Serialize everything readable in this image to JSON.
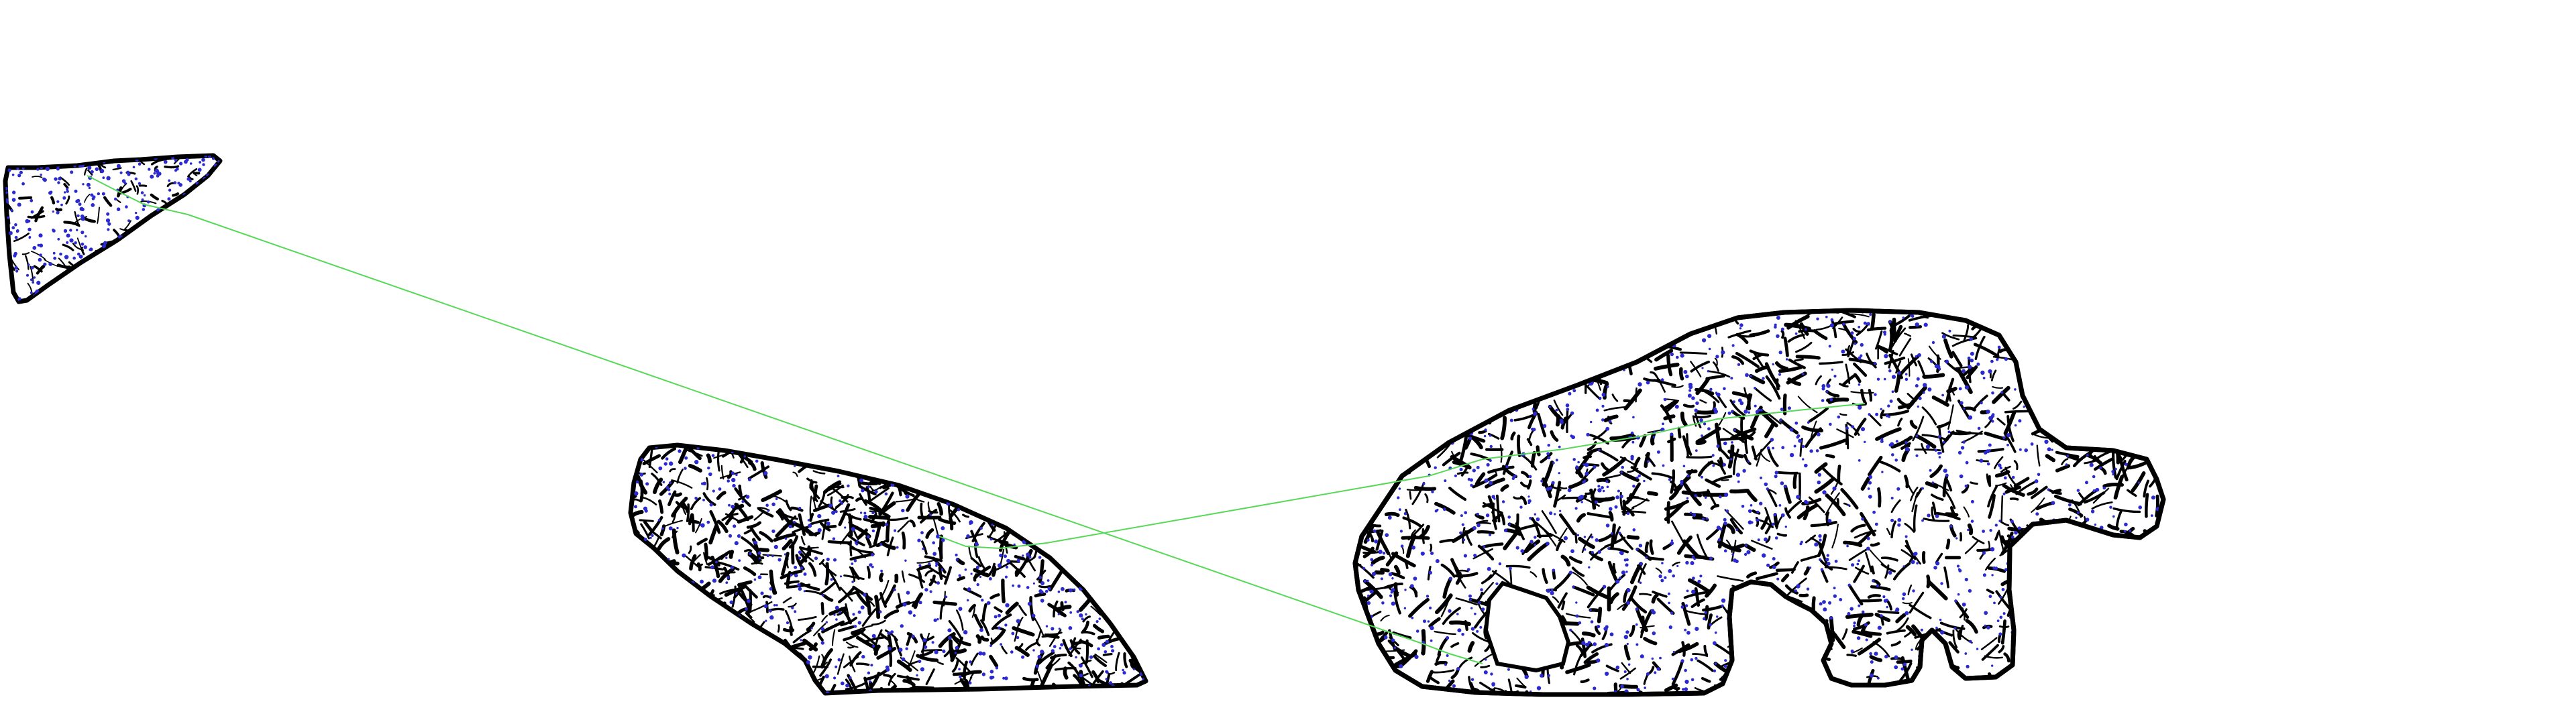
{
  "colors": {
    "background": "#ffffff",
    "outline": "#000000",
    "texture": "#000000",
    "keypoint": "#2a2ad0",
    "match_line": "#58d858"
  },
  "fragments": [
    {
      "name": "fragment-small-triangle"
    },
    {
      "name": "fragment-curved-slab"
    },
    {
      "name": "fragment-large-animal"
    }
  ],
  "matches": [
    {
      "from": "fragment-small-triangle",
      "to": "fragment-large-animal"
    },
    {
      "from": "fragment-curved-slab",
      "to": "fragment-large-animal"
    }
  ]
}
